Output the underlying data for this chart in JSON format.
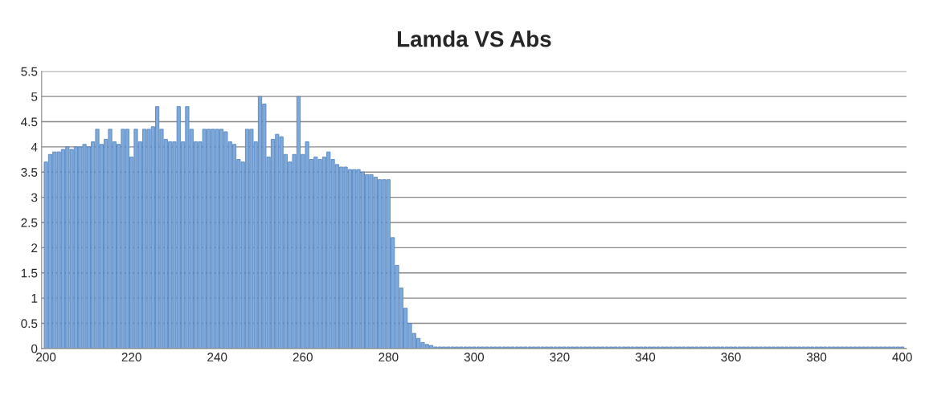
{
  "chart_data": {
    "type": "bar",
    "title": "Lamda VS Abs",
    "color": "#7fa9db",
    "x": [
      200,
      201,
      202,
      203,
      204,
      205,
      206,
      207,
      208,
      209,
      210,
      211,
      212,
      213,
      214,
      215,
      216,
      217,
      218,
      219,
      220,
      221,
      222,
      223,
      224,
      225,
      226,
      227,
      228,
      229,
      230,
      231,
      232,
      233,
      234,
      235,
      236,
      237,
      238,
      239,
      240,
      241,
      242,
      243,
      244,
      245,
      246,
      247,
      248,
      249,
      250,
      251,
      252,
      253,
      254,
      255,
      256,
      257,
      258,
      259,
      260,
      261,
      262,
      263,
      264,
      265,
      266,
      267,
      268,
      269,
      270,
      271,
      272,
      273,
      274,
      275,
      276,
      277,
      278,
      279,
      280,
      281,
      282,
      283,
      284,
      285,
      286,
      287,
      288,
      289,
      290,
      291,
      292,
      293,
      294,
      295,
      296,
      297,
      298,
      299,
      300,
      301,
      302,
      303,
      304,
      305,
      306,
      307,
      308,
      309,
      310,
      311,
      312,
      313,
      314,
      315,
      316,
      317,
      318,
      319,
      320,
      321,
      322,
      323,
      324,
      325,
      326,
      327,
      328,
      329,
      330,
      331,
      332,
      333,
      334,
      335,
      336,
      337,
      338,
      339,
      340,
      341,
      342,
      343,
      344,
      345,
      346,
      347,
      348,
      349,
      350,
      351,
      352,
      353,
      354,
      355,
      356,
      357,
      358,
      359,
      360,
      361,
      362,
      363,
      364,
      365,
      366,
      367,
      368,
      369,
      370,
      371,
      372,
      373,
      374,
      375,
      376,
      377,
      378,
      379,
      380,
      381,
      382,
      383,
      384,
      385,
      386,
      387,
      388,
      389,
      390,
      391,
      392,
      393,
      394,
      395,
      396,
      397,
      398,
      399,
      400
    ],
    "values": [
      3.7,
      3.85,
      3.9,
      3.9,
      3.95,
      4.0,
      3.95,
      4.0,
      4.0,
      4.05,
      4.0,
      4.1,
      4.35,
      4.05,
      4.15,
      4.35,
      4.1,
      4.05,
      4.35,
      4.35,
      3.8,
      4.35,
      4.1,
      4.35,
      4.35,
      4.4,
      4.8,
      4.35,
      4.15,
      4.1,
      4.1,
      4.8,
      4.1,
      4.8,
      4.35,
      4.1,
      4.1,
      4.35,
      4.35,
      4.35,
      4.35,
      4.35,
      4.3,
      4.1,
      4.05,
      3.75,
      3.7,
      4.35,
      4.35,
      4.1,
      5.0,
      4.85,
      3.8,
      4.15,
      4.25,
      4.2,
      3.85,
      3.7,
      3.85,
      5.0,
      3.85,
      4.1,
      3.75,
      3.8,
      3.75,
      3.8,
      3.9,
      3.75,
      3.65,
      3.6,
      3.6,
      3.55,
      3.55,
      3.55,
      3.5,
      3.45,
      3.45,
      3.4,
      3.35,
      3.35,
      3.35,
      2.2,
      1.65,
      1.2,
      0.8,
      0.5,
      0.3,
      0.2,
      0.12,
      0.08,
      0.06,
      0.03,
      0.03,
      0.03,
      0.03,
      0.03,
      0.03,
      0.03,
      0.03,
      0.03,
      0.03,
      0.03,
      0.03,
      0.03,
      0.03,
      0.03,
      0.03,
      0.03,
      0.03,
      0.03,
      0.03,
      0.03,
      0.03,
      0.03,
      0.03,
      0.03,
      0.03,
      0.03,
      0.03,
      0.03,
      0.03,
      0.03,
      0.03,
      0.03,
      0.03,
      0.03,
      0.03,
      0.03,
      0.03,
      0.03,
      0.03,
      0.03,
      0.03,
      0.03,
      0.03,
      0.03,
      0.03,
      0.03,
      0.03,
      0.03,
      0.03,
      0.03,
      0.03,
      0.03,
      0.03,
      0.03,
      0.03,
      0.03,
      0.03,
      0.03,
      0.03,
      0.03,
      0.03,
      0.03,
      0.03,
      0.03,
      0.03,
      0.03,
      0.03,
      0.03,
      0.03,
      0.03,
      0.03,
      0.03,
      0.03,
      0.03,
      0.03,
      0.03,
      0.03,
      0.03,
      0.03,
      0.03,
      0.03,
      0.03,
      0.03,
      0.03,
      0.03,
      0.03,
      0.03,
      0.03,
      0.03,
      0.03,
      0.03,
      0.03,
      0.03,
      0.03,
      0.03,
      0.03,
      0.03,
      0.03,
      0.03,
      0.03,
      0.03,
      0.03,
      0.03,
      0.03,
      0.03,
      0.03,
      0.03,
      0.03,
      0.03
    ],
    "xlim": [
      199,
      401
    ],
    "xticks": [
      200,
      220,
      240,
      260,
      280,
      300,
      320,
      340,
      360,
      380,
      400
    ],
    "ylim": [
      0,
      5.5
    ],
    "yticks": [
      0,
      0.5,
      1,
      1.5,
      2,
      2.5,
      3,
      3.5,
      4,
      4.5,
      5,
      5.5
    ],
    "grid": "y",
    "legend": false
  }
}
